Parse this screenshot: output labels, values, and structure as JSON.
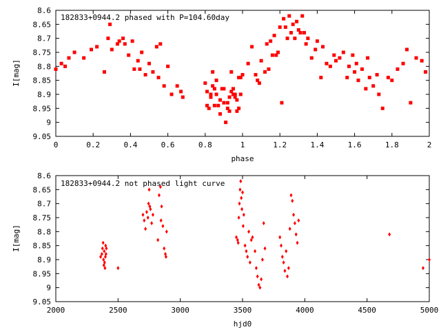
{
  "chart_data": [
    {
      "type": "scatter",
      "title": "182833+0944.2 phased with P=104.60day",
      "xlabel": "phase",
      "ylabel": "I[mag]",
      "xlim": [
        0,
        2
      ],
      "ylim": [
        8.6,
        9.05
      ],
      "y_inverted": true,
      "xticks": [
        "0",
        "0.2",
        "0.4",
        "0.6",
        "0.8",
        "1",
        "1.2",
        "1.4",
        "1.6",
        "1.8",
        "2"
      ],
      "yticks": [
        "8.6",
        "8.65",
        "8.7",
        "8.75",
        "8.8",
        "8.85",
        "8.9",
        "8.95",
        "9",
        "9.05"
      ],
      "marker_color": "#ff0000",
      "series": [
        {
          "x": [
            0.0,
            0.03,
            0.05,
            0.07,
            0.1,
            0.15,
            0.19,
            0.22,
            0.26,
            0.28,
            0.29,
            0.3,
            0.33,
            0.34,
            0.36,
            0.37,
            0.39,
            0.41,
            0.42,
            0.44,
            0.45,
            0.46,
            0.48,
            0.5,
            0.52,
            0.54,
            0.55,
            0.56,
            0.58,
            0.6,
            0.62,
            0.65,
            0.67,
            0.68,
            0.8,
            0.81,
            0.82,
            0.83,
            0.84,
            0.85,
            0.86,
            0.87,
            0.88,
            0.89,
            0.9,
            0.91,
            0.92,
            0.93,
            0.94,
            0.95,
            0.96,
            0.97,
            0.98,
            0.99,
            1.0,
            1.03,
            1.05,
            1.07,
            1.08,
            1.09,
            1.1,
            1.12,
            1.13,
            1.14,
            1.15,
            1.16,
            1.17,
            1.18,
            1.19,
            1.2,
            1.21,
            1.22,
            1.23,
            1.24,
            1.25,
            1.26,
            1.27,
            1.28,
            1.29,
            1.3,
            1.31,
            1.32,
            1.33,
            1.34,
            1.35,
            1.37,
            1.39,
            1.4,
            1.42,
            1.43,
            1.45,
            1.47,
            1.49,
            1.5,
            1.52,
            1.54,
            1.56,
            1.57,
            1.59,
            1.6,
            1.61,
            1.62,
            1.64,
            1.66,
            1.67,
            1.68,
            1.7,
            1.72,
            1.73,
            1.75,
            1.78,
            1.8,
            1.83,
            1.86,
            1.88,
            1.9,
            1.93,
            1.96,
            1.98,
            0.81,
            0.83,
            0.85,
            0.88,
            0.92,
            0.94,
            0.96,
            0.97,
            0.99,
            0.95,
            0.9,
            0.86,
            0.84,
            0.98,
            0.93
          ],
          "y": [
            8.81,
            8.79,
            8.8,
            8.77,
            8.75,
            8.77,
            8.74,
            8.73,
            8.82,
            8.7,
            8.65,
            8.74,
            8.72,
            8.71,
            8.7,
            8.72,
            8.76,
            8.71,
            8.81,
            8.78,
            8.81,
            8.75,
            8.83,
            8.79,
            8.82,
            8.73,
            8.84,
            8.72,
            8.87,
            8.8,
            8.9,
            8.87,
            8.89,
            8.91,
            8.86,
            8.89,
            8.95,
            8.9,
            8.82,
            8.88,
            8.9,
            8.94,
            8.97,
            8.88,
            8.93,
            9.0,
            8.95,
            8.96,
            8.82,
            8.88,
            8.9,
            8.96,
            8.84,
            8.9,
            8.83,
            8.79,
            8.73,
            8.83,
            8.85,
            8.86,
            8.78,
            8.82,
            8.72,
            8.81,
            8.71,
            8.76,
            8.69,
            8.76,
            8.75,
            8.66,
            8.93,
            8.63,
            8.66,
            8.7,
            8.62,
            8.68,
            8.65,
            8.7,
            8.64,
            8.67,
            8.68,
            8.62,
            8.68,
            8.72,
            8.7,
            8.77,
            8.74,
            8.71,
            8.84,
            8.73,
            8.79,
            8.8,
            8.76,
            8.78,
            8.77,
            8.75,
            8.84,
            8.8,
            8.76,
            8.82,
            8.79,
            8.85,
            8.81,
            8.88,
            8.77,
            8.84,
            8.87,
            8.83,
            8.9,
            8.95,
            8.84,
            8.85,
            8.81,
            8.79,
            8.74,
            8.93,
            8.77,
            8.78,
            8.82,
            8.94,
            8.91,
            8.94,
            8.92,
            8.93,
            8.89,
            8.91,
            8.92,
            8.84,
            8.9,
            8.88,
            8.85,
            8.87,
            8.95,
            8.91
          ]
        }
      ]
    },
    {
      "type": "scatter",
      "title": "182833+0944.2 not phased light curve",
      "xlabel": "hjd0",
      "ylabel": "I[mag]",
      "xlim": [
        2000,
        5000
      ],
      "ylim": [
        8.6,
        9.05
      ],
      "y_inverted": true,
      "xticks": [
        "2000",
        "2500",
        "3000",
        "3500",
        "4000",
        "4500",
        "5000"
      ],
      "yticks": [
        "8.6",
        "8.65",
        "8.7",
        "8.75",
        "8.8",
        "8.85",
        "8.9",
        "8.95",
        "9",
        "9.05"
      ],
      "marker_color": "#ff0000",
      "series": [
        {
          "x": [
            2360,
            2370,
            2375,
            2380,
            2383,
            2386,
            2389,
            2392,
            2395,
            2398,
            2400,
            2403,
            2406,
            2500,
            2700,
            2710,
            2720,
            2730,
            2740,
            2745,
            2750,
            2755,
            2760,
            2770,
            2780,
            2820,
            2830,
            2840,
            2845,
            2850,
            2860,
            2870,
            2880,
            2885,
            2890,
            3450,
            3460,
            3465,
            3470,
            3475,
            3480,
            3485,
            3490,
            3495,
            3500,
            3505,
            3510,
            3520,
            3530,
            3540,
            3550,
            3560,
            3570,
            3580,
            3600,
            3610,
            3620,
            3630,
            3640,
            3650,
            3660,
            3670,
            3680,
            3800,
            3810,
            3820,
            3830,
            3840,
            3850,
            3860,
            3870,
            3880,
            3890,
            3900,
            3910,
            3920,
            3930,
            3940,
            3950,
            4680,
            4950,
            5000
          ],
          "y": [
            8.89,
            8.88,
            8.86,
            8.84,
            8.9,
            8.92,
            8.87,
            8.91,
            8.93,
            8.89,
            8.85,
            8.88,
            8.86,
            8.93,
            8.74,
            8.76,
            8.79,
            8.73,
            8.75,
            8.7,
            8.65,
            8.71,
            8.72,
            8.77,
            8.74,
            8.83,
            8.67,
            8.64,
            8.76,
            8.71,
            8.78,
            8.86,
            8.88,
            8.89,
            8.8,
            8.82,
            8.83,
            8.84,
            8.75,
            8.7,
            8.65,
            8.62,
            8.68,
            8.72,
            8.66,
            8.78,
            8.74,
            8.85,
            8.87,
            8.89,
            8.8,
            8.91,
            8.83,
            8.82,
            8.87,
            8.93,
            8.96,
            8.99,
            9.0,
            8.97,
            8.9,
            8.77,
            8.86,
            8.82,
            8.85,
            8.89,
            8.91,
            8.94,
            8.87,
            8.96,
            8.93,
            8.79,
            8.67,
            8.69,
            8.74,
            8.77,
            8.81,
            8.84,
            8.76,
            8.81,
            8.93,
            8.9
          ]
        }
      ]
    }
  ]
}
